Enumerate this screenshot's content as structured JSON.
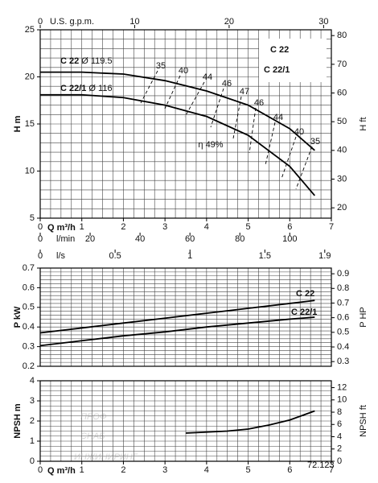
{
  "chart_data": [
    {
      "type": "line",
      "title": "C 22",
      "subtitle": "C 22/1",
      "y_label": "H m",
      "y2_label": "H ft",
      "x_label": "Q m³/h",
      "xlim": [
        0,
        7
      ],
      "xticks": [
        0,
        1,
        2,
        3,
        4,
        5,
        6,
        7
      ],
      "ylim": [
        5,
        25
      ],
      "yticks": [
        5,
        10,
        15,
        20,
        25
      ],
      "y2lim": [
        16.4,
        82.02
      ],
      "y2ticks": [
        20,
        30,
        40,
        50,
        60,
        70,
        80
      ],
      "grid_step": {
        "x": 0.25,
        "y": 1
      },
      "gpm_axis": {
        "label": "U.S. g.p.m.",
        "lim": [
          0,
          30.82
        ],
        "ticks": [
          0,
          10,
          20,
          30
        ]
      },
      "lmin_axis": {
        "label": "l/min",
        "lim": [
          0,
          116.67
        ],
        "ticks": [
          0,
          20,
          40,
          60,
          80,
          100
        ]
      },
      "lps_axis": {
        "label": "l/s",
        "lim": [
          0,
          1.944
        ],
        "ticks": [
          0,
          0.5,
          1,
          1.5,
          1.9
        ]
      },
      "series": [
        {
          "name": "C 22",
          "diameter": "Ø 119.5",
          "color": "#000000",
          "x": [
            0,
            1,
            2,
            3,
            4,
            5,
            6,
            6.6
          ],
          "values": [
            20.5,
            20.5,
            20.3,
            19.6,
            18.5,
            17,
            14.5,
            12.2
          ]
        },
        {
          "name": "C 22/1",
          "diameter": "Ø 116",
          "color": "#000000",
          "x": [
            0,
            1,
            2,
            3,
            4,
            5,
            6,
            6.6
          ],
          "values": [
            18.1,
            18.1,
            17.8,
            17,
            15.8,
            13.8,
            10.5,
            7.4
          ]
        }
      ],
      "efficiency_labels": [
        "35",
        "40",
        "44",
        "46",
        "47",
        "46",
        "44",
        "40",
        "35",
        "η 49%"
      ]
    },
    {
      "type": "line",
      "y_label": "P kW",
      "y2_label": "P HP",
      "xlim": [
        0,
        7
      ],
      "ylim": [
        0.2,
        0.7
      ],
      "yticks": [
        0.2,
        0.3,
        0.4,
        0.5,
        0.6,
        0.7
      ],
      "y2lim": [
        0.268,
        0.939
      ],
      "y2ticks": [
        0.3,
        0.4,
        0.5,
        0.6,
        0.7,
        0.8,
        0.9
      ],
      "grid_step": {
        "x": 0.25,
        "y": 0.02
      },
      "series": [
        {
          "name": "C 22",
          "color": "#000000",
          "x": [
            0,
            1,
            2,
            3,
            4,
            5,
            6,
            6.6
          ],
          "values": [
            0.37,
            0.395,
            0.42,
            0.445,
            0.47,
            0.495,
            0.52,
            0.535
          ]
        },
        {
          "name": "C 22/1",
          "color": "#000000",
          "x": [
            0,
            1,
            2,
            3,
            4,
            5,
            6,
            6.6
          ],
          "values": [
            0.305,
            0.33,
            0.355,
            0.375,
            0.4,
            0.42,
            0.44,
            0.45
          ]
        }
      ]
    },
    {
      "type": "line",
      "y_label": "NPSH m",
      "y2_label": "NPSH ft",
      "x_label": "Q m³/h",
      "xlim": [
        0,
        7
      ],
      "xticks": [
        0,
        1,
        2,
        3,
        4,
        5,
        6,
        7
      ],
      "ylim": [
        0,
        4
      ],
      "yticks": [
        0,
        1,
        2,
        3,
        4
      ],
      "y2lim": [
        0,
        13.12
      ],
      "y2ticks": [
        0,
        2,
        4,
        6,
        8,
        10,
        12
      ],
      "grid_step": {
        "x": 0.25,
        "y": 0.25
      },
      "series": [
        {
          "color": "#000000",
          "x": [
            3.5,
            4,
            4.5,
            5,
            5.5,
            6,
            6.6
          ],
          "values": [
            1.4,
            1.45,
            1.5,
            1.6,
            1.8,
            2.05,
            2.5
          ]
        }
      ],
      "code": "72.123",
      "watermark": [
        "ПРОФ",
        "СНАБ",
        "ИНЖИНИРИНГ"
      ]
    }
  ]
}
